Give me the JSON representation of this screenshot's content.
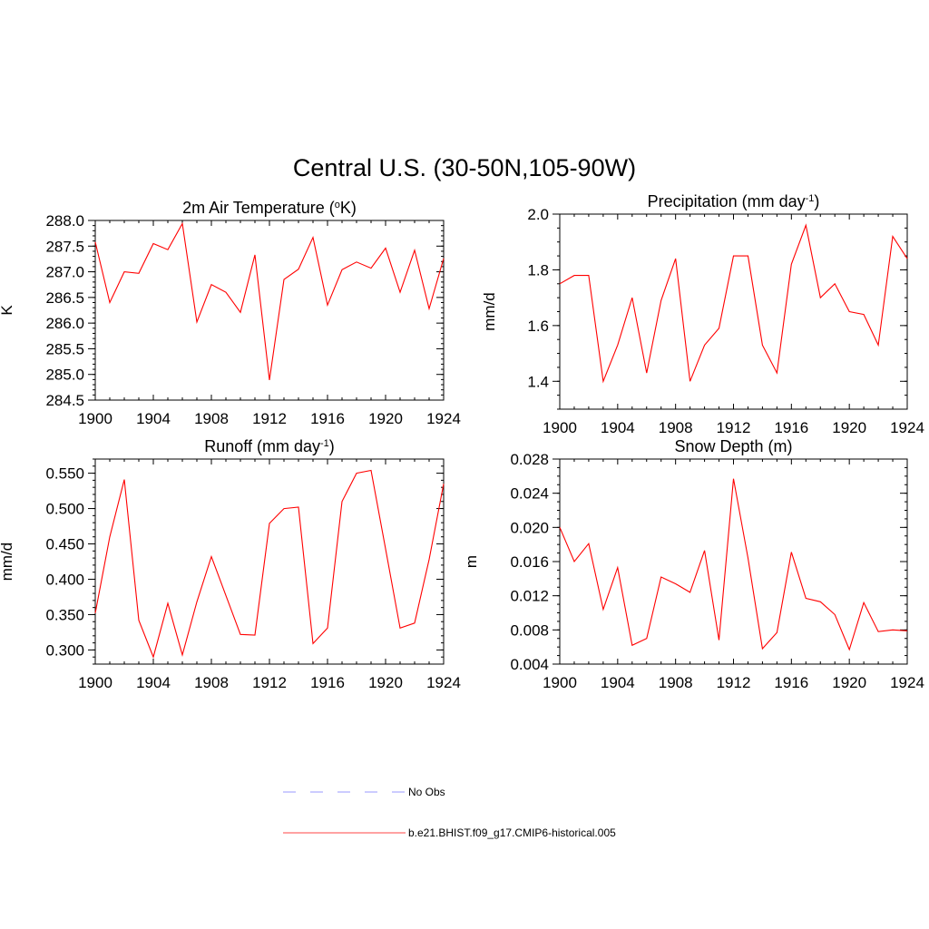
{
  "title": "Central U.S. (30-50N,105-90W)",
  "legend": {
    "items": [
      {
        "label": "No Obs",
        "style": "dashed",
        "color": "#9999ff"
      },
      {
        "label": "b.e21.BHIST.f09_g17.CMIP6-historical.005",
        "style": "solid",
        "color": "#ff0000"
      }
    ]
  },
  "chart_data": [
    {
      "type": "line",
      "title": "2m Air Temperature (°K)",
      "title_main": "2m Air Temperature (",
      "title_sup": "o",
      "title_tail": "K)",
      "ylabel": "K",
      "xlim": [
        1900,
        1924
      ],
      "ylim": [
        284.5,
        288.0
      ],
      "yticks": [
        "284.5",
        "285.0",
        "285.5",
        "286.0",
        "286.5",
        "287.0",
        "287.5",
        "288.0"
      ],
      "yminor": 0.1,
      "xticks": [
        "1900",
        "1904",
        "1908",
        "1912",
        "1916",
        "1920",
        "1924"
      ],
      "color": "#ff0000",
      "x": [
        1900,
        1901,
        1902,
        1903,
        1904,
        1905,
        1906,
        1907,
        1908,
        1909,
        1910,
        1911,
        1912,
        1913,
        1914,
        1915,
        1916,
        1917,
        1918,
        1919,
        1920,
        1921,
        1922,
        1923,
        1924
      ],
      "y": [
        287.58,
        286.4,
        287.0,
        286.97,
        287.55,
        287.43,
        287.94,
        286.02,
        286.75,
        286.6,
        286.21,
        287.33,
        284.89,
        286.85,
        287.05,
        287.67,
        286.35,
        287.04,
        287.19,
        287.07,
        287.46,
        286.6,
        287.42,
        286.28,
        287.26
      ]
    },
    {
      "type": "line",
      "title": "Precipitation (mm day-1)",
      "title_main": "Precipitation (mm day",
      "title_sup": "-1",
      "title_tail": ")",
      "ylabel": "mm/d",
      "xlim": [
        1900,
        1924
      ],
      "ylim": [
        1.3,
        2.0
      ],
      "yticks": [
        "1.4",
        "1.6",
        "1.8",
        "2.0"
      ],
      "yminor": 0.05,
      "xticks": [
        "1900",
        "1904",
        "1908",
        "1912",
        "1916",
        "1920",
        "1924"
      ],
      "color": "#ff0000",
      "x": [
        1900,
        1901,
        1902,
        1903,
        1904,
        1905,
        1906,
        1907,
        1908,
        1909,
        1910,
        1911,
        1912,
        1913,
        1914,
        1915,
        1916,
        1917,
        1918,
        1919,
        1920,
        1921,
        1922,
        1923,
        1924
      ],
      "y": [
        1.75,
        1.78,
        1.78,
        1.4,
        1.53,
        1.7,
        1.43,
        1.69,
        1.84,
        1.4,
        1.53,
        1.59,
        1.85,
        1.85,
        1.53,
        1.43,
        1.82,
        1.96,
        1.7,
        1.75,
        1.65,
        1.64,
        1.53,
        1.92,
        1.84
      ]
    },
    {
      "type": "line",
      "title": "Runoff (mm day-1)",
      "title_main": "Runoff (mm day",
      "title_sup": "-1",
      "title_tail": ")",
      "ylabel": "mm/d",
      "xlim": [
        1900,
        1924
      ],
      "ylim": [
        0.28,
        0.57
      ],
      "yticks": [
        "0.300",
        "0.350",
        "0.400",
        "0.450",
        "0.500",
        "0.550"
      ],
      "yminor": 0.01,
      "xticks": [
        "1900",
        "1904",
        "1908",
        "1912",
        "1916",
        "1920",
        "1924"
      ],
      "color": "#ff0000",
      "x": [
        1900,
        1901,
        1902,
        1903,
        1904,
        1905,
        1906,
        1907,
        1908,
        1909,
        1910,
        1911,
        1912,
        1913,
        1914,
        1915,
        1916,
        1917,
        1918,
        1919,
        1920,
        1921,
        1922,
        1923,
        1924
      ],
      "y": [
        0.352,
        0.46,
        0.541,
        0.342,
        0.29,
        0.366,
        0.293,
        0.368,
        0.432,
        0.377,
        0.322,
        0.321,
        0.479,
        0.5,
        0.502,
        0.309,
        0.331,
        0.51,
        0.55,
        0.554,
        0.443,
        0.331,
        0.338,
        0.428,
        0.535
      ]
    },
    {
      "type": "line",
      "title": "Snow Depth (m)",
      "title_main": "Snow Depth (m)",
      "title_sup": "",
      "title_tail": "",
      "ylabel": "m",
      "xlim": [
        1900,
        1924
      ],
      "ylim": [
        0.004,
        0.028
      ],
      "yticks": [
        "0.004",
        "0.008",
        "0.012",
        "0.016",
        "0.020",
        "0.024",
        "0.028"
      ],
      "yminor": 0.001,
      "xticks": [
        "1900",
        "1904",
        "1908",
        "1912",
        "1916",
        "1920",
        "1924"
      ],
      "color": "#ff0000",
      "x": [
        1900,
        1901,
        1902,
        1903,
        1904,
        1905,
        1906,
        1907,
        1908,
        1909,
        1910,
        1911,
        1912,
        1913,
        1914,
        1915,
        1916,
        1917,
        1918,
        1919,
        1920,
        1921,
        1922,
        1923,
        1924
      ],
      "y": [
        0.02,
        0.016,
        0.0181,
        0.0104,
        0.0153,
        0.0062,
        0.007,
        0.0142,
        0.0134,
        0.0124,
        0.0173,
        0.0068,
        0.0257,
        0.0164,
        0.0058,
        0.0077,
        0.0171,
        0.0117,
        0.0113,
        0.0098,
        0.0057,
        0.0112,
        0.0078,
        0.008,
        0.0079
      ]
    }
  ]
}
